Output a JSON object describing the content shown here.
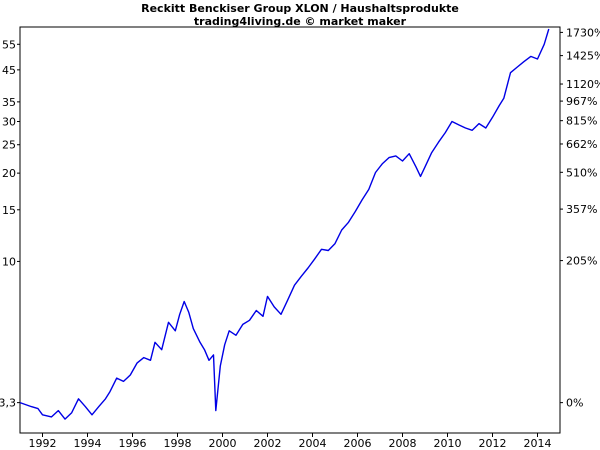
{
  "chart_data": {
    "type": "line",
    "title": "Reckitt Benckiser Group XLON / Haushaltsprodukte",
    "subtitle": "trading4living.de © market maker",
    "y_scale": "log",
    "ylim": [
      2.6,
      63
    ],
    "xlim": [
      1991.0,
      2015.0
    ],
    "x_ticks": [
      "1992",
      "1994",
      "1996",
      "1998",
      "2000",
      "2002",
      "2004",
      "2006",
      "2008",
      "2010",
      "2012",
      "2014"
    ],
    "y_ticks_left": [
      "3,3",
      "10",
      "15",
      "20",
      "25",
      "30",
      "35",
      "45",
      "55"
    ],
    "y_ticks_right": [
      "0%",
      "205%",
      "357%",
      "510%",
      "662%",
      "815%",
      "967%",
      "1120%",
      "1425%",
      "1730%"
    ],
    "series": [
      {
        "color": "#0000e6",
        "x": [
          1991.0,
          1991.5,
          1991.8,
          1992.0,
          1992.4,
          1992.7,
          1993.0,
          1993.3,
          1993.6,
          1993.9,
          1994.2,
          1994.5,
          1994.8,
          1995.0,
          1995.3,
          1995.6,
          1995.9,
          1996.2,
          1996.5,
          1996.8,
          1997.0,
          1997.3,
          1997.6,
          1997.9,
          1998.1,
          1998.3,
          1998.5,
          1998.7,
          1999.0,
          1999.2,
          1999.4,
          1999.6,
          1999.7,
          1999.9,
          2000.1,
          2000.3,
          2000.6,
          2000.9,
          2001.2,
          2001.5,
          2001.8,
          2002.0,
          2002.3,
          2002.6,
          2002.9,
          2003.2,
          2003.5,
          2003.8,
          2004.1,
          2004.4,
          2004.7,
          2005.0,
          2005.3,
          2005.6,
          2005.9,
          2006.2,
          2006.5,
          2006.8,
          2007.1,
          2007.4,
          2007.7,
          2008.0,
          2008.3,
          2008.6,
          2008.8,
          2009.0,
          2009.3,
          2009.6,
          2009.9,
          2010.2,
          2010.5,
          2010.8,
          2011.1,
          2011.4,
          2011.7,
          2012.0,
          2012.3,
          2012.5,
          2012.8,
          2013.1,
          2013.4,
          2013.7,
          2014.0,
          2014.3,
          2014.5
        ],
        "values": [
          3.3,
          3.2,
          3.15,
          3.0,
          2.95,
          3.1,
          2.9,
          3.05,
          3.4,
          3.2,
          3.0,
          3.2,
          3.4,
          3.6,
          4.0,
          3.9,
          4.1,
          4.5,
          4.7,
          4.6,
          5.3,
          5.0,
          6.2,
          5.8,
          6.6,
          7.3,
          6.7,
          5.9,
          5.3,
          5.0,
          4.6,
          4.8,
          3.1,
          4.4,
          5.2,
          5.8,
          5.6,
          6.1,
          6.3,
          6.8,
          6.5,
          7.6,
          7.0,
          6.6,
          7.4,
          8.3,
          8.9,
          9.5,
          10.2,
          11.0,
          10.9,
          11.5,
          12.8,
          13.6,
          14.8,
          16.2,
          17.6,
          20.1,
          21.5,
          22.6,
          22.9,
          22.0,
          23.3,
          21.0,
          19.5,
          21.0,
          23.5,
          25.5,
          27.5,
          30.0,
          29.2,
          28.5,
          28.0,
          29.5,
          28.5,
          31.0,
          34.0,
          36.0,
          44.0,
          46.0,
          48.0,
          50.0,
          49.0,
          55.0,
          62.0
        ]
      }
    ]
  }
}
